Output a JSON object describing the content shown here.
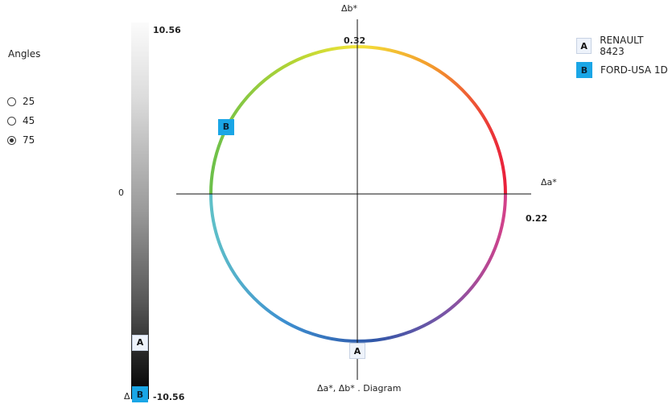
{
  "angles": {
    "title": "Angles",
    "options": [
      {
        "label": "25",
        "checked": false
      },
      {
        "label": "45",
        "checked": false
      },
      {
        "label": "75",
        "checked": true
      }
    ]
  },
  "lightness_bar": {
    "max_label": "10.56",
    "min_label": "-10.56",
    "zero_label": "0",
    "delta_label": "Δ",
    "markers": [
      {
        "letter": "A",
        "value": -7.4
      },
      {
        "letter": "B",
        "value": -10.3
      }
    ]
  },
  "diagram": {
    "y_axis_label": "Δb*",
    "x_axis_label": "Δa*",
    "top_value": "0.32",
    "right_value": "0.22",
    "caption": "Δa*, Δb* . Diagram",
    "markers": [
      {
        "letter": "A",
        "angle_deg": 270
      },
      {
        "letter": "B",
        "angle_deg": 153
      }
    ]
  },
  "legend": [
    {
      "letter": "A",
      "name": "RENAULT 8423",
      "color": "#eef3fb"
    },
    {
      "letter": "B",
      "name": "FORD-USA 1D",
      "color": "#1aa6e6"
    }
  ]
}
